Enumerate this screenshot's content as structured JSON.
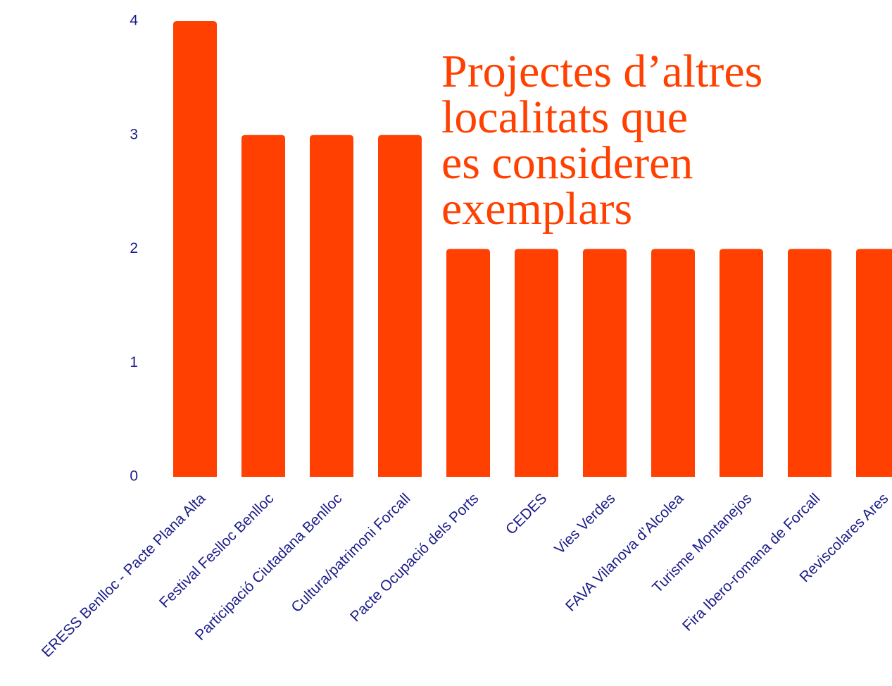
{
  "chart_data": {
    "type": "bar",
    "title": [
      "Projectes d’altres",
      "localitats que",
      "es consideren",
      "exemplars"
    ],
    "categories": [
      "ERESS Benlloc - Pacte Plana Alta",
      "Festival Feslloc Benlloc",
      "Participació Ciutadana Benlloc",
      "Cultura/patrimoni Forcall",
      "Pacte Ocupació dels Ports",
      "CEDES",
      "Vies Verdes",
      "FAVA Vilanova d’Alcolea",
      "Turisme Montanejos",
      "Fira Ibero-romana de Forcall",
      "Reviscolares Ares"
    ],
    "values": [
      4,
      3,
      3,
      3,
      2,
      2,
      2,
      2,
      2,
      2,
      2
    ],
    "color": "#ff4000",
    "ylim": [
      0,
      4
    ],
    "yticks": [
      0,
      1,
      2,
      3,
      4
    ],
    "grid": false
  }
}
